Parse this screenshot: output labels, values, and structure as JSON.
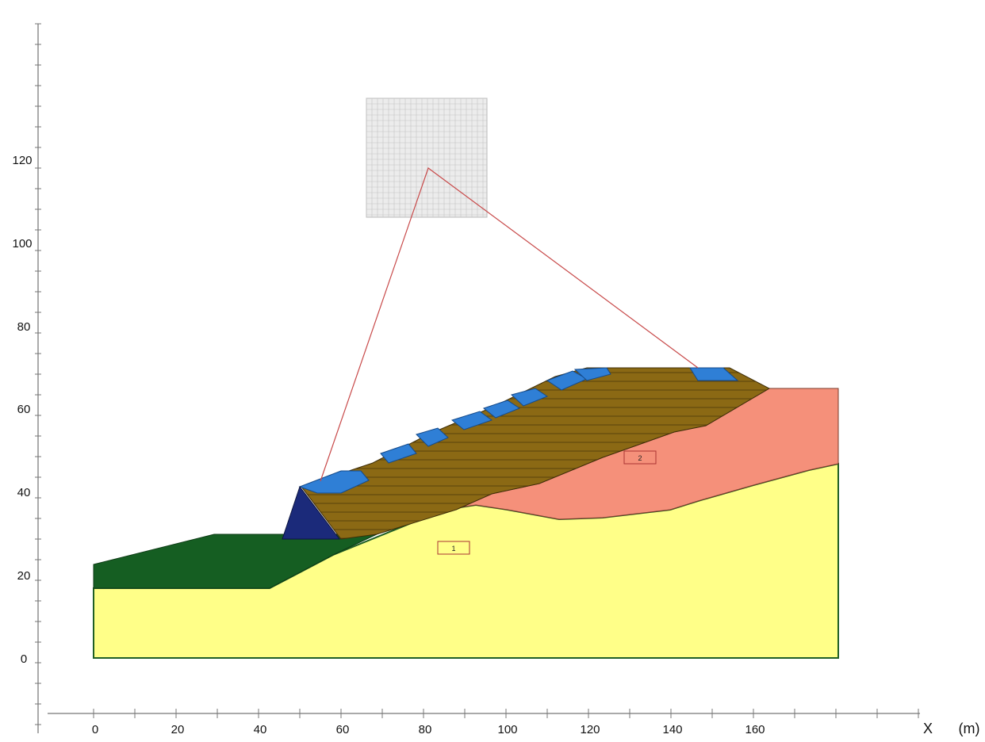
{
  "axes": {
    "x_ticks": [
      "0",
      "20",
      "40",
      "60",
      "80",
      "100",
      "120",
      "140",
      "160"
    ],
    "y_ticks": [
      "-",
      "0",
      "20",
      "40",
      "60",
      "80",
      "100",
      "120"
    ],
    "x_title": "X",
    "x_unit": "(m)"
  },
  "material_labels": [
    "1",
    "2"
  ],
  "colors": {
    "foundation": "#ffff88",
    "weathered_rock": "#f5907a",
    "green_layer": "#155e22",
    "embankment": "#8b6914",
    "drain_blue": "#2f7fd6",
    "toe_block": "#1b2a7a",
    "circle_lines": "#c84a4a"
  }
}
